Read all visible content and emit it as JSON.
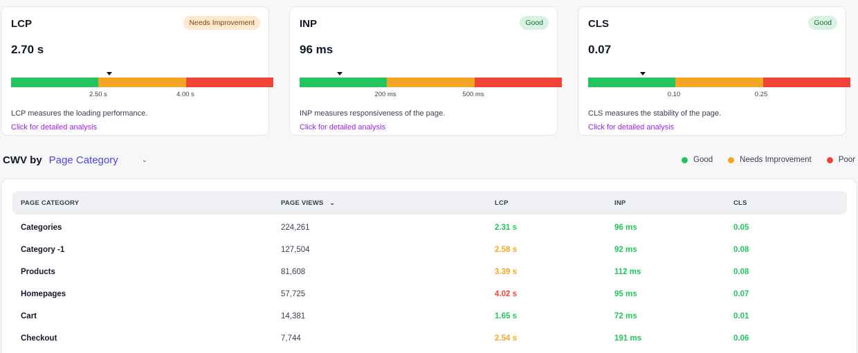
{
  "metrics": [
    {
      "title": "LCP",
      "value": "2.70 s",
      "badge": "Needs Improvement",
      "badge_status": "needs-improvement",
      "thresholds": [
        "2.50 s",
        "4.00 s"
      ],
      "marker_fraction": 0.37,
      "description": "LCP measures the loading performance.",
      "link": "Click for detailed analysis"
    },
    {
      "title": "INP",
      "value": "96 ms",
      "badge": "Good",
      "badge_status": "good",
      "thresholds": [
        "200 ms",
        "500 ms"
      ],
      "marker_fraction": 0.16,
      "description": "INP measures responsiveness of the page.",
      "link": "Click for detailed analysis"
    },
    {
      "title": "CLS",
      "value": "0.07",
      "badge": "Good",
      "badge_status": "good",
      "thresholds": [
        "0.10",
        "0.25"
      ],
      "marker_fraction": 0.22,
      "description": "CLS measures the stability of the page.",
      "link": "Click for detailed analysis"
    }
  ],
  "cwv": {
    "by_label": "CWV by",
    "selected": "Page Category"
  },
  "legend": [
    {
      "label": "Good",
      "color": "#22c55e"
    },
    {
      "label": "Needs Improvement",
      "color": "#f5a524"
    },
    {
      "label": "Poor",
      "color": "#f04438"
    }
  ],
  "table": {
    "headers": [
      "PAGE CATEGORY",
      "PAGE VIEWS",
      "LCP",
      "INP",
      "CLS"
    ],
    "sort_indicator": "⌄",
    "rows": [
      {
        "name": "Categories",
        "views": "224,261",
        "lcp": "2.31 s",
        "lcp_status": "good",
        "inp": "96 ms",
        "inp_status": "good",
        "cls": "0.05",
        "cls_status": "good"
      },
      {
        "name": "Category -1",
        "views": "127,504",
        "lcp": "2.58 s",
        "lcp_status": "ni",
        "inp": "92 ms",
        "inp_status": "good",
        "cls": "0.08",
        "cls_status": "good"
      },
      {
        "name": "Products",
        "views": "81,608",
        "lcp": "3.39 s",
        "lcp_status": "ni",
        "inp": "112 ms",
        "inp_status": "good",
        "cls": "0.08",
        "cls_status": "good"
      },
      {
        "name": "Homepages",
        "views": "57,725",
        "lcp": "4.02 s",
        "lcp_status": "poor",
        "inp": "95 ms",
        "inp_status": "good",
        "cls": "0.07",
        "cls_status": "good"
      },
      {
        "name": "Cart",
        "views": "14,381",
        "lcp": "1.65 s",
        "lcp_status": "good",
        "inp": "72 ms",
        "inp_status": "good",
        "cls": "0.01",
        "cls_status": "good"
      },
      {
        "name": "Checkout",
        "views": "7,744",
        "lcp": "2.54 s",
        "lcp_status": "ni",
        "inp": "191 ms",
        "inp_status": "good",
        "cls": "0.06",
        "cls_status": "good"
      }
    ]
  }
}
